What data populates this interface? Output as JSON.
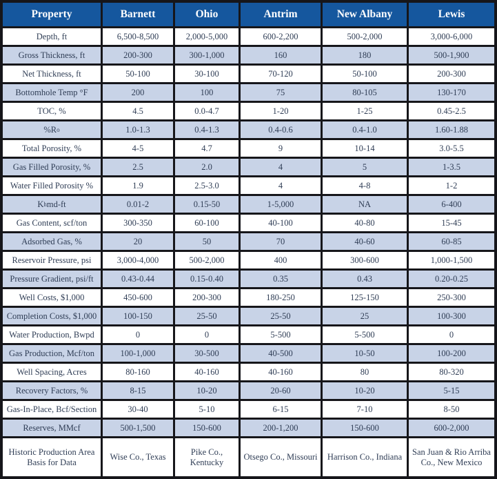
{
  "colors": {
    "header_bg": "#15579e",
    "alt_row_bg": "#c8d3e7",
    "grid_line": "#16161a",
    "text": "#2f3d55",
    "header_text": "#ffffff"
  },
  "chart_data": {
    "type": "table",
    "columns": [
      "Property",
      "Barnett",
      "Ohio",
      "Antrim",
      "New Albany",
      "Lewis"
    ],
    "rows": [
      {
        "label": "Depth, ft",
        "values": [
          "6,500-8,500",
          "2,000-5,000",
          "600-2,200",
          "500-2,000",
          "3,000-6,000"
        ]
      },
      {
        "label": "Gross Thickness, ft",
        "values": [
          "200-300",
          "300-1,000",
          "160",
          "180",
          "500-1,900"
        ]
      },
      {
        "label": "Net Thickness, ft",
        "values": [
          "50-100",
          "30-100",
          "70-120",
          "50-100",
          "200-300"
        ]
      },
      {
        "label": "Bottomhole Temp °F",
        "values": [
          "200",
          "100",
          "75",
          "80-105",
          "130-170"
        ]
      },
      {
        "label": "TOC, %",
        "values": [
          "4.5",
          "0.0-4.7",
          "1-20",
          "1-25",
          "0.45-2.5"
        ]
      },
      {
        "label": "%R_{o}",
        "values": [
          "1.0-1.3",
          "0.4-1.3",
          "0.4-0.6",
          "0.4-1.0",
          "1.60-1.88"
        ]
      },
      {
        "label": "Total Porosity, %",
        "values": [
          "4-5",
          "4.7",
          "9",
          "10-14",
          "3.0-5.5"
        ]
      },
      {
        "label": "Gas Filled Porosity, %",
        "values": [
          "2.5",
          "2.0",
          "4",
          "5",
          "1-3.5"
        ]
      },
      {
        "label": "Water Filled Porosity %",
        "values": [
          "1.9",
          "2.5-3.0",
          "4",
          "4-8",
          "1-2"
        ]
      },
      {
        "label": "K_{h} md-ft",
        "values": [
          "0.01-2",
          "0.15-50",
          "1-5,000",
          "NA",
          "6-400"
        ]
      },
      {
        "label": "Gas Content, scf/ton",
        "values": [
          "300-350",
          "60-100",
          "40-100",
          "40-80",
          "15-45"
        ]
      },
      {
        "label": "Adsorbed Gas, %",
        "values": [
          "20",
          "50",
          "70",
          "40-60",
          "60-85"
        ]
      },
      {
        "label": "Reservoir Pressure, psi",
        "values": [
          "3,000-4,000",
          "500-2,000",
          "400",
          "300-600",
          "1,000-1,500"
        ]
      },
      {
        "label": "Pressure Gradient, psi/ft",
        "values": [
          "0.43-0.44",
          "0.15-0.40",
          "0.35",
          "0.43",
          "0.20-0.25"
        ]
      },
      {
        "label": "Well Costs, $1,000",
        "values": [
          "450-600",
          "200-300",
          "180-250",
          "125-150",
          "250-300"
        ]
      },
      {
        "label": "Completion Costs, $1,000",
        "values": [
          "100-150",
          "25-50",
          "25-50",
          "25",
          "100-300"
        ]
      },
      {
        "label": "Water Production, Bwpd",
        "values": [
          "0",
          "0",
          "5-500",
          "5-500",
          "0"
        ]
      },
      {
        "label": "Gas Production, Mcf/ton",
        "values": [
          "100-1,000",
          "30-500",
          "40-500",
          "10-50",
          "100-200"
        ]
      },
      {
        "label": "Well Spacing, Acres",
        "values": [
          "80-160",
          "40-160",
          "40-160",
          "80",
          "80-320"
        ]
      },
      {
        "label": "Recovery Factors, %",
        "values": [
          "8-15",
          "10-20",
          "20-60",
          "10-20",
          "5-15"
        ]
      },
      {
        "label": "Gas-In-Place, Bcf/Section",
        "values": [
          "30-40",
          "5-10",
          "6-15",
          "7-10",
          "8-50"
        ]
      },
      {
        "label": "Reserves, MMcf",
        "values": [
          "500-1,500",
          "150-600",
          "200-1,200",
          "150-600",
          "600-2,000"
        ]
      },
      {
        "label": "Historic Production Area Basis for Data",
        "values": [
          "Wise Co., Texas",
          "Pike Co., Kentucky",
          "Otsego Co., Missouri",
          "Harrison Co., Indiana",
          "San Juan & Rio Arriba Co., New Mexico"
        ]
      }
    ]
  }
}
